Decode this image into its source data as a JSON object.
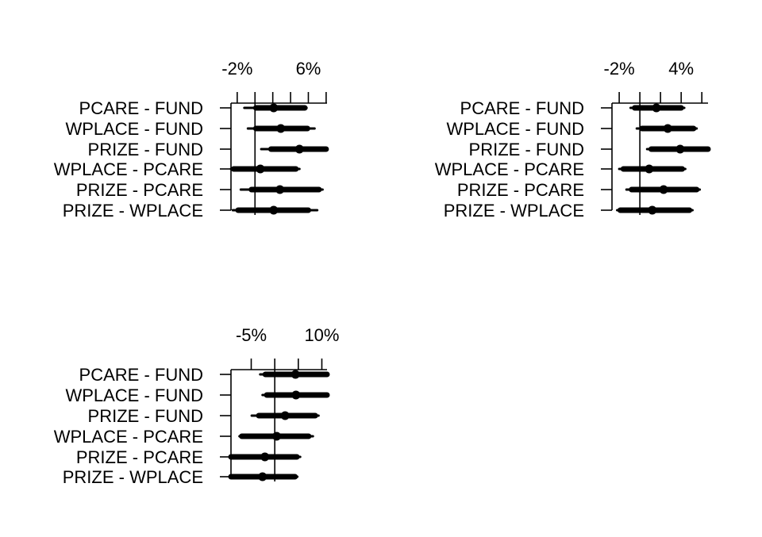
{
  "chart_data": [
    {
      "type": "coefficient-interval",
      "categories": [
        "PCARE - FUND",
        "WPLACE - FUND",
        "PRIZE - FUND",
        "WPLACE - PCARE",
        "PRIZE - PCARE",
        "PRIZE - WPLACE"
      ],
      "x_tick_labels": [
        "-2%",
        "6%"
      ],
      "x_ticks": [
        -0.02,
        0.0,
        0.02,
        0.04,
        0.06,
        0.08
      ],
      "x_tick_label_values": [
        -0.02,
        0.06
      ],
      "xlim": [
        -0.027,
        0.081
      ],
      "reference_line": 0.0,
      "estimates": [
        0.021,
        0.029,
        0.05,
        0.006,
        0.028,
        0.021
      ],
      "inner_intervals": [
        [
          0.001,
          0.056
        ],
        [
          0.001,
          0.059
        ],
        [
          0.018,
          0.08
        ],
        [
          -0.024,
          0.046
        ],
        [
          -0.004,
          0.072
        ],
        [
          -0.019,
          0.06
        ]
      ],
      "outer_intervals": [
        [
          -0.012,
          0.058
        ],
        [
          -0.008,
          0.067
        ],
        [
          0.007,
          0.081
        ],
        [
          -0.027,
          0.05
        ],
        [
          -0.016,
          0.076
        ],
        [
          -0.025,
          0.07
        ]
      ]
    },
    {
      "type": "coefficient-interval",
      "categories": [
        "PCARE - FUND",
        "WPLACE - FUND",
        "PRIZE - FUND",
        "WPLACE - PCARE",
        "PRIZE - PCARE",
        "PRIZE - WPLACE"
      ],
      "x_tick_labels": [
        "-2%",
        "4%"
      ],
      "x_ticks": [
        -0.02,
        0.0,
        0.02,
        0.04,
        0.06,
        0.08
      ],
      "x_tick_label_values": [
        -0.02,
        0.04
      ],
      "xlim": [
        -0.027,
        0.066
      ],
      "reference_line": 0.0,
      "estimates": [
        0.016,
        0.027,
        0.039,
        0.009,
        0.023,
        0.012
      ],
      "inner_intervals": [
        [
          -0.005,
          0.04
        ],
        [
          0.002,
          0.052
        ],
        [
          0.011,
          0.066
        ],
        [
          -0.016,
          0.041
        ],
        [
          -0.008,
          0.055
        ],
        [
          -0.019,
          0.048
        ]
      ],
      "outer_intervals": [
        [
          -0.009,
          0.043
        ],
        [
          -0.003,
          0.055
        ],
        [
          0.007,
          0.066
        ],
        [
          -0.02,
          0.044
        ],
        [
          -0.013,
          0.058
        ],
        [
          -0.022,
          0.051
        ]
      ]
    },
    {
      "type": "coefficient-interval",
      "categories": [
        "PCARE - FUND",
        "WPLACE - FUND",
        "PRIZE - FUND",
        "WPLACE - PCARE",
        "PRIZE - PCARE",
        "PRIZE - WPLACE"
      ],
      "x_tick_labels": [
        "-5%",
        "10%"
      ],
      "x_ticks": [
        -0.05,
        0.0,
        0.05,
        0.1
      ],
      "x_tick_label_values": [
        -0.05,
        0.1
      ],
      "xlim": [
        -0.093,
        0.111
      ],
      "reference_line": 0.0,
      "estimates": [
        0.044,
        0.045,
        0.022,
        0.004,
        -0.021,
        -0.026
      ],
      "inner_intervals": [
        [
          -0.02,
          0.111
        ],
        [
          -0.017,
          0.111
        ],
        [
          -0.034,
          0.086
        ],
        [
          -0.07,
          0.072
        ],
        [
          -0.093,
          0.047
        ],
        [
          -0.093,
          0.043
        ]
      ],
      "outer_intervals": [
        [
          -0.031,
          0.111
        ],
        [
          -0.026,
          0.111
        ],
        [
          -0.049,
          0.093
        ],
        [
          -0.075,
          0.081
        ],
        [
          -0.093,
          0.054
        ],
        [
          -0.093,
          0.048
        ]
      ]
    }
  ]
}
